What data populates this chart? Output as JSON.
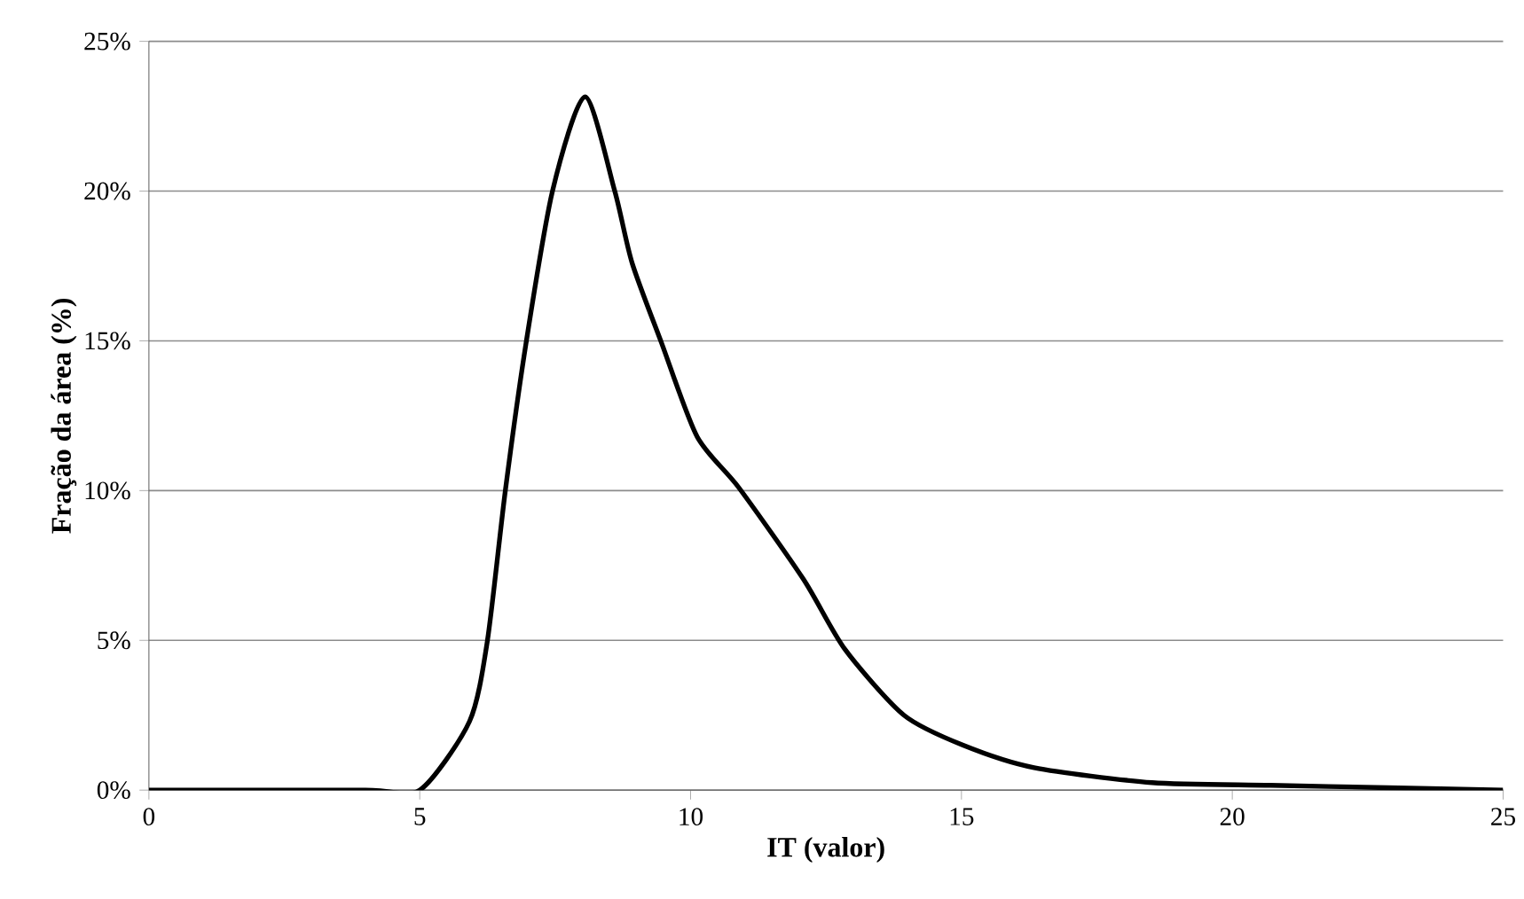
{
  "chart_data": {
    "type": "line",
    "xlabel": "IT (valor)",
    "ylabel": "Fração da área (%)",
    "x": [
      0,
      4,
      5,
      5.92,
      6.25,
      6.58,
      6.96,
      7.45,
      8.05,
      8.6,
      8.92,
      9.47,
      10.12,
      10.89,
      12.08,
      12.85,
      13.94,
      15.03,
      16.34,
      18.52,
      20.7,
      22.87,
      25
    ],
    "series": [
      {
        "color": "#000000",
        "values": [
          0,
          0,
          0,
          2.3,
          5.0,
          10.0,
          14.9,
          20.0,
          23.15,
          20.0,
          17.6,
          14.9,
          11.8,
          10.1,
          7.05,
          4.7,
          2.5,
          1.5,
          0.75,
          0.25,
          0.16,
          0.08,
          0
        ]
      }
    ],
    "xlim": [
      0,
      25
    ],
    "xticks": [
      0,
      5,
      10,
      15,
      20,
      25
    ],
    "ylim": [
      0,
      25
    ],
    "yticks": [
      {
        "value": 0,
        "label": "0%"
      },
      {
        "value": 5,
        "label": "5%"
      },
      {
        "value": 10,
        "label": "10%"
      },
      {
        "value": 15,
        "label": "15%"
      },
      {
        "value": 20,
        "label": "20%"
      },
      {
        "value": 25,
        "label": "25%"
      }
    ],
    "grid": "y",
    "marker": "none",
    "line_style": "solid"
  }
}
